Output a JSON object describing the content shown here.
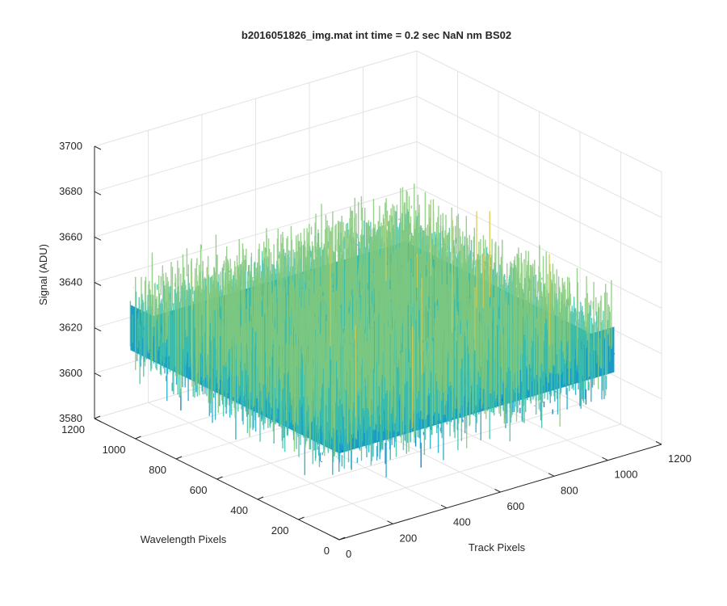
{
  "chart_data": {
    "type": "surface",
    "title": "b2016051826_img.mat int time = 0.2 sec  NaN nm BS02",
    "xlabel": "Track Pixels",
    "ylabel": "Wavelength Pixels",
    "zlabel": "Signal (ADU)",
    "x_ticks": [
      "0",
      "200",
      "400",
      "600",
      "800",
      "1000",
      "1200"
    ],
    "y_ticks": [
      "0",
      "200",
      "400",
      "600",
      "800",
      "1000",
      "1200"
    ],
    "z_ticks": [
      "3580",
      "3600",
      "3620",
      "3640",
      "3660",
      "3680",
      "3700"
    ],
    "xlim": [
      0,
      1200
    ],
    "ylim": [
      0,
      1200
    ],
    "zlim": [
      3580,
      3700
    ],
    "x_extent": [
      0,
      1024
    ],
    "y_extent": [
      0,
      1024
    ],
    "z_mean": 3630,
    "z_noise_range": [
      3595,
      3680
    ],
    "grid": true,
    "colormap": [
      "#0072bd",
      "#1aa6c8",
      "#3fbfa8",
      "#86c97a",
      "#d5c94f"
    ]
  }
}
